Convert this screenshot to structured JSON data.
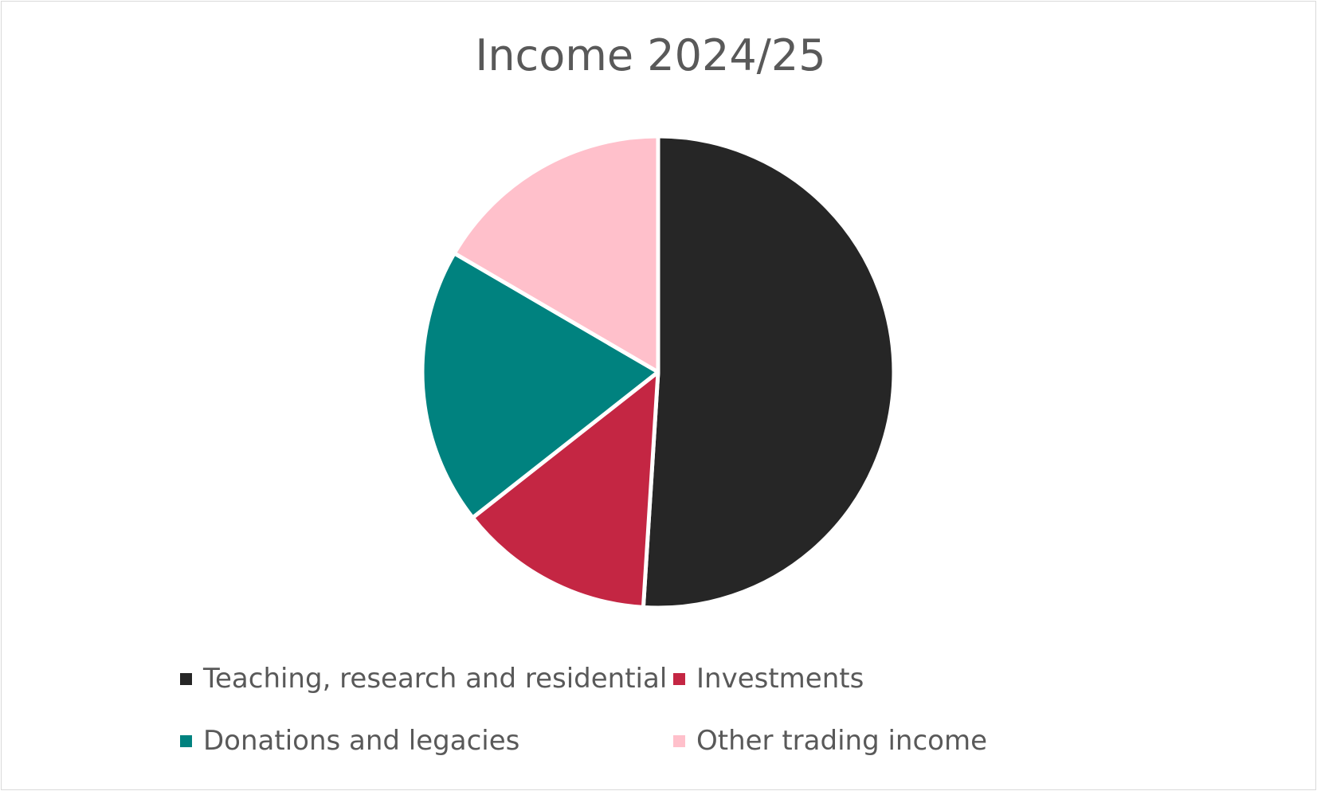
{
  "chart_data": {
    "type": "pie",
    "title": "Income 2024/25",
    "categories": [
      "Teaching, research and residential",
      "Investments",
      "Donations and legacies",
      "Other trading income"
    ],
    "values": [
      51.0,
      13.4,
      19.0,
      16.6
    ],
    "unit": "percent share (estimated)",
    "colors": [
      "#262626",
      "#c42643",
      "#00827f",
      "#ffc0cb"
    ],
    "legend_position": "bottom",
    "slice_order": "clockwise-from-top"
  }
}
